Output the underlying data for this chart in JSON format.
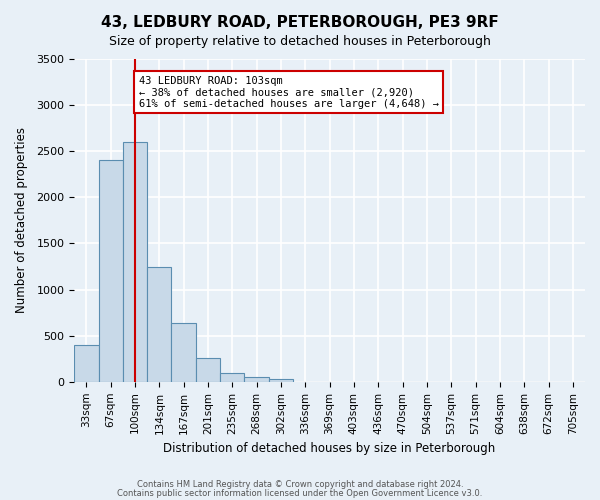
{
  "title": "43, LEDBURY ROAD, PETERBOROUGH, PE3 9RF",
  "subtitle": "Size of property relative to detached houses in Peterborough",
  "xlabel": "Distribution of detached houses by size in Peterborough",
  "ylabel": "Number of detached properties",
  "bar_values": [
    400,
    2400,
    2600,
    1250,
    640,
    260,
    100,
    50,
    30,
    0,
    0,
    0,
    0,
    0,
    0,
    0,
    0,
    0,
    0,
    0,
    0
  ],
  "bar_labels": [
    "33sqm",
    "67sqm",
    "100sqm",
    "134sqm",
    "167sqm",
    "201sqm",
    "235sqm",
    "268sqm",
    "302sqm",
    "336sqm",
    "369sqm",
    "403sqm",
    "436sqm",
    "470sqm",
    "504sqm",
    "537sqm",
    "571sqm",
    "604sqm",
    "638sqm",
    "672sqm",
    "705sqm"
  ],
  "bar_color": "#c8d9e8",
  "bar_edge_color": "#5a8db0",
  "background_color": "#e8f0f7",
  "grid_color": "#ffffff",
  "vline_x": 2,
  "vline_color": "#cc0000",
  "annotation_text": "43 LEDBURY ROAD: 103sqm\n← 38% of detached houses are smaller (2,920)\n61% of semi-detached houses are larger (4,648) →",
  "annotation_box_color": "#cc0000",
  "ylim": [
    0,
    3500
  ],
  "yticks": [
    0,
    500,
    1000,
    1500,
    2000,
    2500,
    3000,
    3500
  ],
  "footer_line1": "Contains HM Land Registry data © Crown copyright and database right 2024.",
  "footer_line2": "Contains public sector information licensed under the Open Government Licence v3.0."
}
